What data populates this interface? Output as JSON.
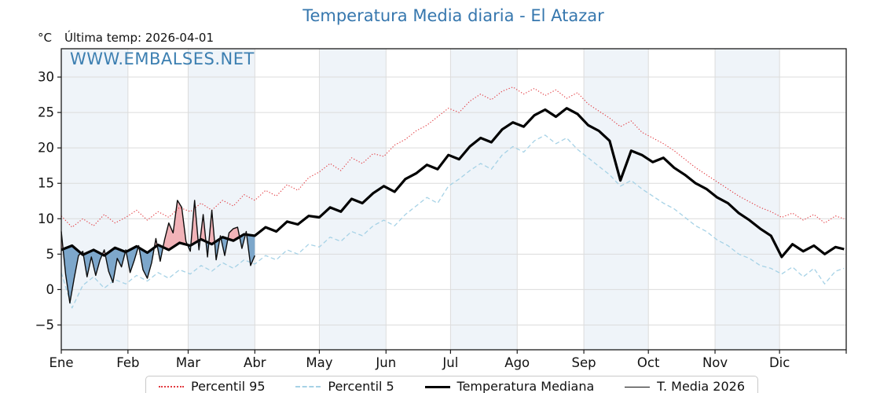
{
  "title": "Temperatura Media diaria - El Atazar",
  "header": {
    "degree_label": "°C",
    "last_temp_label": "Última temp: 2026-04-01"
  },
  "watermark": "WWW.EMBALSES.NET",
  "chart_data": {
    "type": "line",
    "title": "Temperatura Media diaria - El Atazar",
    "xlabel": "",
    "ylabel": "°C",
    "ylim": [
      -8.5,
      34
    ],
    "y_ticks": [
      -5,
      0,
      5,
      10,
      15,
      20,
      25,
      30
    ],
    "grid": true,
    "legend_position": "bottom",
    "band_color": "#eff4f9",
    "grid_color": "#dcdcdc",
    "frame_color": "#1a1a1a",
    "months": [
      {
        "label": "Ene",
        "start_day": 1
      },
      {
        "label": "Feb",
        "start_day": 32
      },
      {
        "label": "Mar",
        "start_day": 60
      },
      {
        "label": "Abr",
        "start_day": 91
      },
      {
        "label": "May",
        "start_day": 121
      },
      {
        "label": "Jun",
        "start_day": 152
      },
      {
        "label": "Jul",
        "start_day": 182
      },
      {
        "label": "Ago",
        "start_day": 213
      },
      {
        "label": "Sep",
        "start_day": 244
      },
      {
        "label": "Oct",
        "start_day": 274
      },
      {
        "label": "Nov",
        "start_day": 305
      },
      {
        "label": "Dic",
        "start_day": 335
      }
    ],
    "fills": {
      "between": [
        "t2026",
        "median"
      ],
      "above_color": "#f1b3b8",
      "below_color": "#7da7cb"
    },
    "series": [
      {
        "id": "p95",
        "name": "Percentil 95",
        "style": "dotted",
        "color": "#e23b41",
        "width": 1.1,
        "x": [
          1,
          6,
          11,
          16,
          21,
          26,
          31,
          36,
          41,
          46,
          51,
          56,
          61,
          66,
          71,
          76,
          81,
          86,
          91,
          96,
          101,
          106,
          111,
          116,
          121,
          126,
          131,
          136,
          141,
          146,
          151,
          156,
          161,
          166,
          171,
          176,
          181,
          186,
          191,
          196,
          201,
          206,
          211,
          216,
          221,
          226,
          231,
          236,
          241,
          246,
          251,
          256,
          261,
          266,
          271,
          276,
          281,
          286,
          291,
          296,
          301,
          306,
          311,
          316,
          321,
          326,
          331,
          336,
          341,
          346,
          351,
          356,
          361,
          365
        ],
        "y": [
          10.4,
          8.8,
          10.0,
          9.0,
          10.6,
          9.4,
          10.2,
          11.2,
          9.8,
          11.0,
          10.2,
          11.6,
          11.0,
          12.2,
          11.2,
          12.6,
          11.8,
          13.4,
          12.6,
          14.0,
          13.2,
          14.8,
          14.0,
          15.8,
          16.6,
          17.8,
          16.8,
          18.6,
          17.8,
          19.2,
          18.8,
          20.4,
          21.2,
          22.4,
          23.2,
          24.4,
          25.6,
          25.0,
          26.6,
          27.6,
          26.8,
          28.0,
          28.6,
          27.6,
          28.4,
          27.4,
          28.2,
          27.0,
          27.8,
          26.2,
          25.2,
          24.2,
          23.0,
          23.8,
          22.2,
          21.4,
          20.6,
          19.6,
          18.4,
          17.2,
          16.2,
          15.2,
          14.2,
          13.2,
          12.4,
          11.6,
          11.0,
          10.2,
          10.8,
          9.8,
          10.6,
          9.4,
          10.4,
          10.0
        ]
      },
      {
        "id": "p5",
        "name": "Percentil 5",
        "style": "dashed",
        "color": "#a6d2e6",
        "width": 1.3,
        "x": [
          1,
          6,
          11,
          16,
          21,
          26,
          31,
          36,
          41,
          46,
          51,
          56,
          61,
          66,
          71,
          76,
          81,
          86,
          91,
          96,
          101,
          106,
          111,
          116,
          121,
          126,
          131,
          136,
          141,
          146,
          151,
          156,
          161,
          166,
          171,
          176,
          181,
          186,
          191,
          196,
          201,
          206,
          211,
          216,
          221,
          226,
          231,
          236,
          241,
          246,
          251,
          256,
          261,
          266,
          271,
          276,
          281,
          286,
          291,
          296,
          301,
          306,
          311,
          316,
          321,
          326,
          331,
          336,
          341,
          346,
          351,
          356,
          361,
          365
        ],
        "y": [
          2.4,
          -2.6,
          0.6,
          1.8,
          0.2,
          1.4,
          0.8,
          2.0,
          1.2,
          2.4,
          1.6,
          2.8,
          2.2,
          3.4,
          2.6,
          3.8,
          3.0,
          4.2,
          3.6,
          4.8,
          4.2,
          5.6,
          5.0,
          6.4,
          6.0,
          7.4,
          6.8,
          8.2,
          7.6,
          9.0,
          9.8,
          9.0,
          10.6,
          11.8,
          13.0,
          12.2,
          14.6,
          15.6,
          16.8,
          17.8,
          17.0,
          19.0,
          20.2,
          19.4,
          21.0,
          21.8,
          20.6,
          21.4,
          19.8,
          18.6,
          17.4,
          16.2,
          14.6,
          15.4,
          14.2,
          13.2,
          12.2,
          11.4,
          10.2,
          9.0,
          8.2,
          7.0,
          6.2,
          5.0,
          4.4,
          3.4,
          3.0,
          2.2,
          3.2,
          1.8,
          3.0,
          0.8,
          2.6,
          3.0
        ]
      },
      {
        "id": "median",
        "name": "Temperatura Mediana",
        "style": "solid",
        "color": "#000000",
        "width": 3.2,
        "x": [
          1,
          6,
          11,
          16,
          21,
          26,
          31,
          36,
          41,
          46,
          51,
          56,
          61,
          66,
          71,
          76,
          81,
          86,
          91,
          96,
          101,
          106,
          111,
          116,
          121,
          126,
          131,
          136,
          141,
          146,
          151,
          156,
          161,
          166,
          171,
          176,
          181,
          186,
          191,
          196,
          201,
          206,
          211,
          216,
          221,
          226,
          231,
          236,
          241,
          246,
          251,
          256,
          261,
          266,
          271,
          276,
          281,
          286,
          291,
          296,
          301,
          306,
          311,
          316,
          321,
          326,
          331,
          336,
          341,
          346,
          351,
          356,
          361,
          365
        ],
        "y": [
          5.6,
          6.2,
          4.9,
          5.6,
          4.8,
          5.9,
          5.3,
          6.1,
          5.2,
          6.3,
          5.6,
          6.6,
          6.2,
          7.1,
          6.4,
          7.4,
          6.9,
          7.8,
          7.6,
          8.8,
          8.2,
          9.6,
          9.2,
          10.4,
          10.2,
          11.6,
          11.0,
          12.8,
          12.2,
          13.6,
          14.6,
          13.8,
          15.6,
          16.4,
          17.6,
          17.0,
          19.0,
          18.4,
          20.2,
          21.4,
          20.8,
          22.6,
          23.6,
          23.0,
          24.6,
          25.4,
          24.4,
          25.6,
          24.8,
          23.2,
          22.4,
          21.0,
          15.4,
          19.6,
          19.0,
          18.0,
          18.6,
          17.2,
          16.2,
          15.0,
          14.2,
          13.0,
          12.2,
          10.8,
          9.8,
          8.6,
          7.6,
          4.6,
          6.4,
          5.4,
          6.2,
          5.0,
          6.0,
          5.7
        ]
      },
      {
        "id": "t2026",
        "name": "T. Media 2026",
        "style": "solid",
        "color": "#0d0d0d",
        "width": 1.4,
        "x": [
          1,
          3,
          5,
          7,
          9,
          11,
          13,
          15,
          17,
          19,
          21,
          23,
          25,
          27,
          29,
          31,
          33,
          35,
          37,
          39,
          41,
          43,
          45,
          47,
          49,
          51,
          53,
          55,
          57,
          59,
          61,
          63,
          65,
          67,
          69,
          71,
          73,
          75,
          77,
          79,
          81,
          83,
          85,
          87,
          89,
          91
        ],
        "y": [
          8.2,
          2.2,
          -1.9,
          1.6,
          4.8,
          5.4,
          1.8,
          4.6,
          2.0,
          4.2,
          5.6,
          2.6,
          1.0,
          4.4,
          3.2,
          5.6,
          2.4,
          4.2,
          6.2,
          2.8,
          1.6,
          3.8,
          7.2,
          4.0,
          7.0,
          9.4,
          8.0,
          12.6,
          11.6,
          6.8,
          5.4,
          12.6,
          5.6,
          10.6,
          4.6,
          11.2,
          4.2,
          7.6,
          4.8,
          8.0,
          8.6,
          8.8,
          5.8,
          8.2,
          3.4,
          4.8
        ]
      }
    ]
  }
}
